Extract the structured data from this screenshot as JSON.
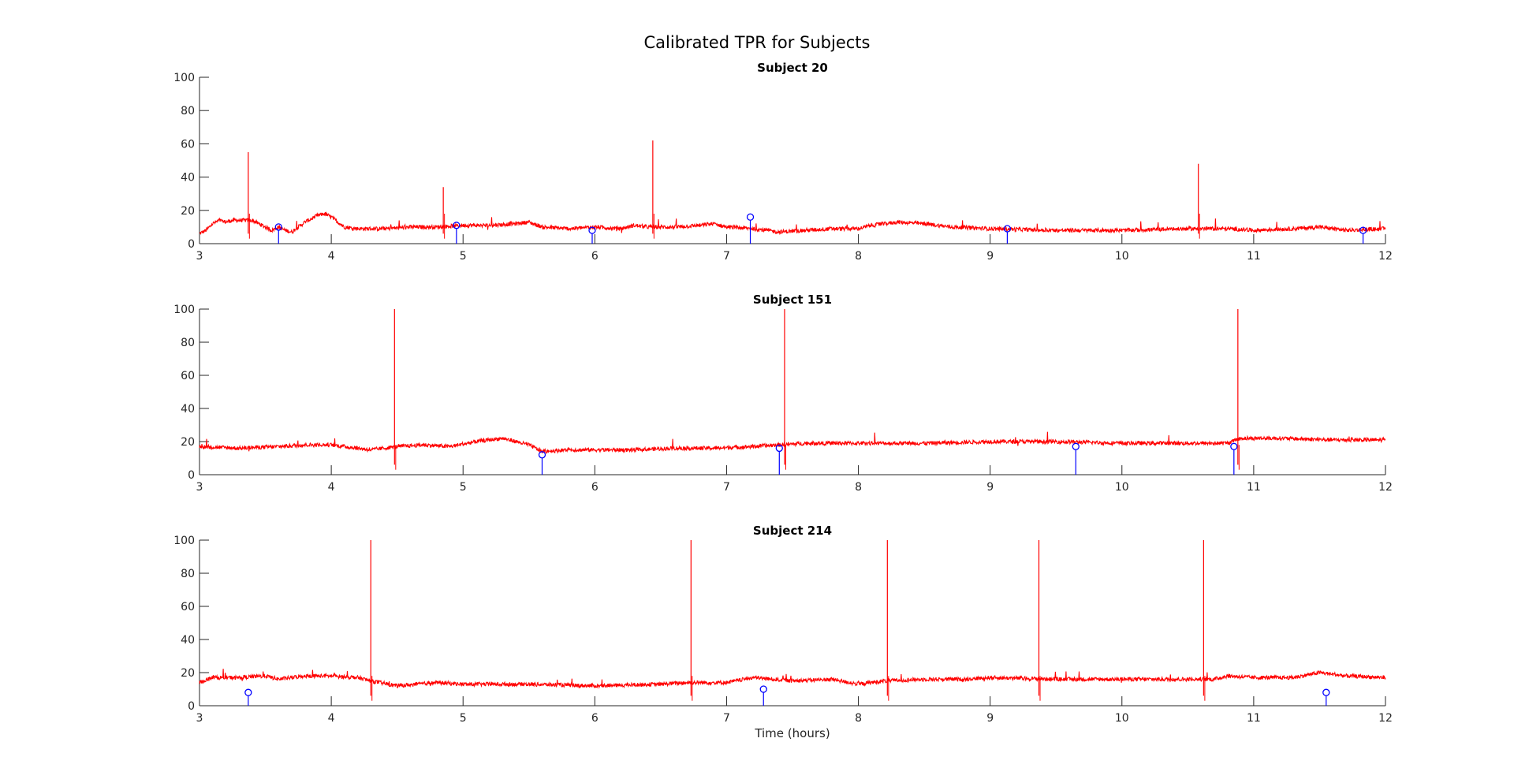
{
  "figure": {
    "title": "Calibrated TPR for Subjects"
  },
  "colors": {
    "signal": "#ff0000",
    "stems": "#0000ff",
    "axis": "#262626",
    "background": "#ffffff"
  },
  "chart_data": [
    {
      "type": "line",
      "title": "Subject 20",
      "xlabel": "",
      "ylabel": "",
      "xlim": [
        3,
        12
      ],
      "ylim": [
        0,
        100
      ],
      "xticks": [
        3,
        4,
        5,
        6,
        7,
        8,
        9,
        10,
        11,
        12
      ],
      "yticks": [
        0,
        20,
        40,
        60,
        80,
        100
      ],
      "grid": false,
      "series": [
        {
          "kind": "line",
          "color": "#ff0000",
          "x": [
            3.0,
            3.05,
            3.1,
            3.15,
            3.2,
            3.25,
            3.3,
            3.35,
            3.4,
            3.45,
            3.5,
            3.55,
            3.6,
            3.65,
            3.7,
            3.75,
            3.8,
            3.85,
            3.9,
            3.95,
            4.0,
            4.1,
            4.2,
            4.4,
            4.6,
            4.8,
            5.0,
            5.2,
            5.4,
            5.5,
            5.6,
            5.8,
            6.0,
            6.2,
            6.3,
            6.4,
            6.6,
            6.8,
            6.9,
            7.0,
            7.2,
            7.4,
            7.6,
            7.8,
            8.0,
            8.1,
            8.3,
            8.5,
            8.7,
            9.0,
            9.5,
            10.0,
            10.5,
            10.8,
            11.0,
            11.3,
            11.5,
            11.7,
            12.0
          ],
          "y": [
            6,
            8,
            12,
            14,
            13,
            14,
            14,
            14,
            14,
            12,
            10,
            8,
            10,
            8,
            7,
            10,
            13,
            15,
            17,
            18,
            16,
            10,
            9,
            9,
            10,
            10,
            11,
            11,
            12,
            13,
            10,
            9,
            10,
            9,
            11,
            10,
            10,
            11,
            12,
            10,
            9,
            7,
            8,
            9,
            9,
            11,
            13,
            12,
            10,
            9,
            8,
            8,
            9,
            9,
            8,
            9,
            10,
            8,
            9
          ]
        },
        {
          "kind": "spikes",
          "color": "#ff0000",
          "x": [
            3.37,
            4.85,
            6.44,
            10.58
          ],
          "y": [
            55,
            34,
            62,
            48
          ]
        },
        {
          "kind": "stem",
          "color": "#0000ff",
          "x": [
            3.6,
            4.95,
            5.98,
            7.18,
            9.13,
            11.83
          ],
          "y": [
            10,
            11,
            8,
            16,
            9,
            8
          ]
        }
      ]
    },
    {
      "type": "line",
      "title": "Subject 151",
      "xlabel": "",
      "ylabel": "",
      "xlim": [
        3,
        12
      ],
      "ylim": [
        0,
        100
      ],
      "xticks": [
        3,
        4,
        5,
        6,
        7,
        8,
        9,
        10,
        11,
        12
      ],
      "yticks": [
        0,
        20,
        40,
        60,
        80,
        100
      ],
      "grid": false,
      "series": [
        {
          "kind": "line",
          "color": "#ff0000",
          "x": [
            3.0,
            3.3,
            3.6,
            3.8,
            4.0,
            4.2,
            4.3,
            4.5,
            4.7,
            4.9,
            5.1,
            5.3,
            5.5,
            5.6,
            5.8,
            6.0,
            6.3,
            6.6,
            6.9,
            7.2,
            7.4,
            7.6,
            8.0,
            8.5,
            9.0,
            9.5,
            10.0,
            10.5,
            10.8,
            10.9,
            11.2,
            11.6,
            12.0
          ],
          "y": [
            17,
            16,
            17,
            18,
            18,
            16,
            15,
            17,
            18,
            17,
            20,
            22,
            18,
            14,
            15,
            15,
            15,
            16,
            16,
            17,
            18,
            19,
            19,
            19,
            20,
            20,
            19,
            19,
            19,
            22,
            22,
            21,
            21
          ]
        },
        {
          "kind": "spikes",
          "color": "#ff0000",
          "x": [
            4.48,
            7.44,
            10.88
          ],
          "y": [
            100,
            100,
            100
          ]
        },
        {
          "kind": "stem",
          "color": "#0000ff",
          "x": [
            5.6,
            7.4,
            9.65,
            10.85
          ],
          "y": [
            12,
            16,
            17,
            17
          ]
        }
      ]
    },
    {
      "type": "line",
      "title": "Subject 214",
      "xlabel": "Time (hours)",
      "ylabel": "",
      "xlim": [
        3,
        12
      ],
      "ylim": [
        0,
        100
      ],
      "xticks": [
        3,
        4,
        5,
        6,
        7,
        8,
        9,
        10,
        11,
        12
      ],
      "yticks": [
        0,
        20,
        40,
        60,
        80,
        100
      ],
      "grid": false,
      "series": [
        {
          "kind": "line",
          "color": "#ff0000",
          "x": [
            3.0,
            3.1,
            3.3,
            3.5,
            3.6,
            3.8,
            4.0,
            4.2,
            4.3,
            4.5,
            4.8,
            5.0,
            5.5,
            6.0,
            6.5,
            6.7,
            7.0,
            7.2,
            7.5,
            7.8,
            8.0,
            8.2,
            8.5,
            8.8,
            9.0,
            9.5,
            10.0,
            10.5,
            10.7,
            10.8,
            11.0,
            11.3,
            11.5,
            11.7,
            12.0
          ],
          "y": [
            14,
            17,
            17,
            18,
            16,
            18,
            18,
            17,
            15,
            12,
            14,
            13,
            13,
            12,
            13,
            14,
            14,
            17,
            15,
            16,
            13,
            15,
            16,
            16,
            17,
            16,
            16,
            16,
            16,
            18,
            17,
            17,
            20,
            18,
            17
          ]
        },
        {
          "kind": "spikes",
          "color": "#ff0000",
          "x": [
            4.3,
            6.73,
            8.22,
            9.37,
            10.62
          ],
          "y": [
            100,
            100,
            100,
            100,
            100
          ]
        },
        {
          "kind": "stem",
          "color": "#0000ff",
          "x": [
            3.37,
            7.28,
            11.55
          ],
          "y": [
            8,
            10,
            8
          ]
        }
      ]
    }
  ]
}
